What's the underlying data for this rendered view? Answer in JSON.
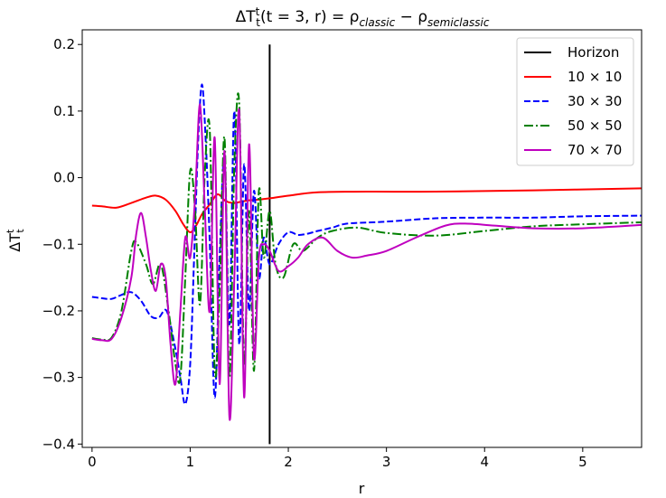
{
  "chart_data": {
    "type": "line",
    "title": "ΔT_t^t(t=3,r) = ρ_classic − ρ_semiclassic",
    "xlabel": "r",
    "ylabel": "ΔT_t^t",
    "xlim": [
      -0.1,
      5.6
    ],
    "ylim": [
      -0.405,
      0.222
    ],
    "xticks": [
      0,
      1,
      2,
      3,
      4,
      5
    ],
    "yticks": [
      -0.4,
      -0.3,
      -0.2,
      -0.1,
      0.0,
      0.1,
      0.2
    ],
    "xtick_labels": [
      "0",
      "1",
      "2",
      "3",
      "4",
      "5"
    ],
    "ytick_labels": [
      "−0.4",
      "−0.3",
      "−0.2",
      "−0.1",
      "0.0",
      "0.1",
      "0.2"
    ],
    "grid": false,
    "legend_position": "top-right",
    "horizon": {
      "name": "Horizon",
      "x": 1.81,
      "y_range": [
        -0.4,
        0.2
      ],
      "color": "#000000"
    },
    "series": [
      {
        "name": "10 × 10",
        "color": "#ff0000",
        "style": "solid",
        "points": [
          [
            0,
            -0.042
          ],
          [
            0.1,
            -0.043
          ],
          [
            0.25,
            -0.045
          ],
          [
            0.4,
            -0.038
          ],
          [
            0.55,
            -0.03
          ],
          [
            0.65,
            -0.027
          ],
          [
            0.75,
            -0.033
          ],
          [
            0.85,
            -0.05
          ],
          [
            0.93,
            -0.07
          ],
          [
            1.0,
            -0.082
          ],
          [
            1.06,
            -0.072
          ],
          [
            1.12,
            -0.055
          ],
          [
            1.2,
            -0.04
          ],
          [
            1.28,
            -0.025
          ],
          [
            1.36,
            -0.035
          ],
          [
            1.44,
            -0.038
          ],
          [
            1.52,
            -0.036
          ],
          [
            1.6,
            -0.034
          ],
          [
            1.7,
            -0.033
          ],
          [
            1.81,
            -0.031
          ],
          [
            2.0,
            -0.027
          ],
          [
            2.3,
            -0.022
          ],
          [
            2.8,
            -0.021
          ],
          [
            3.5,
            -0.021
          ],
          [
            4.5,
            -0.019
          ],
          [
            5.6,
            -0.016
          ]
        ]
      },
      {
        "name": "30 × 30",
        "color": "#0000ff",
        "style": "dashed",
        "points": [
          [
            0,
            -0.179
          ],
          [
            0.1,
            -0.181
          ],
          [
            0.2,
            -0.182
          ],
          [
            0.3,
            -0.176
          ],
          [
            0.4,
            -0.172
          ],
          [
            0.5,
            -0.185
          ],
          [
            0.6,
            -0.208
          ],
          [
            0.68,
            -0.21
          ],
          [
            0.76,
            -0.2
          ],
          [
            0.84,
            -0.25
          ],
          [
            0.9,
            -0.3
          ],
          [
            0.95,
            -0.34
          ],
          [
            1.0,
            -0.28
          ],
          [
            1.04,
            -0.12
          ],
          [
            1.08,
            0.05
          ],
          [
            1.12,
            0.14
          ],
          [
            1.16,
            0.05
          ],
          [
            1.2,
            -0.1
          ],
          [
            1.25,
            -0.33
          ],
          [
            1.3,
            -0.12
          ],
          [
            1.35,
            0.03
          ],
          [
            1.4,
            -0.22
          ],
          [
            1.45,
            0.1
          ],
          [
            1.5,
            -0.25
          ],
          [
            1.55,
            0.02
          ],
          [
            1.6,
            -0.2
          ],
          [
            1.65,
            -0.02
          ],
          [
            1.7,
            -0.15
          ],
          [
            1.75,
            -0.09
          ],
          [
            1.81,
            -0.13
          ],
          [
            1.9,
            -0.1
          ],
          [
            2.0,
            -0.082
          ],
          [
            2.1,
            -0.086
          ],
          [
            2.2,
            -0.084
          ],
          [
            2.3,
            -0.08
          ],
          [
            2.45,
            -0.075
          ],
          [
            2.6,
            -0.069
          ],
          [
            3.0,
            -0.066
          ],
          [
            3.5,
            -0.061
          ],
          [
            4.0,
            -0.06
          ],
          [
            4.5,
            -0.06
          ],
          [
            5.0,
            -0.058
          ],
          [
            5.6,
            -0.057
          ]
        ]
      },
      {
        "name": "50 × 50",
        "color": "#008000",
        "style": "dashdot",
        "points": [
          [
            0,
            -0.241
          ],
          [
            0.1,
            -0.243
          ],
          [
            0.2,
            -0.24
          ],
          [
            0.3,
            -0.2
          ],
          [
            0.4,
            -0.11
          ],
          [
            0.45,
            -0.097
          ],
          [
            0.55,
            -0.13
          ],
          [
            0.62,
            -0.16
          ],
          [
            0.7,
            -0.13
          ],
          [
            0.78,
            -0.2
          ],
          [
            0.85,
            -0.28
          ],
          [
            0.9,
            -0.3
          ],
          [
            0.95,
            -0.15
          ],
          [
            1.0,
            0.01
          ],
          [
            1.05,
            -0.05
          ],
          [
            1.1,
            -0.19
          ],
          [
            1.15,
            0.01
          ],
          [
            1.2,
            0.07
          ],
          [
            1.25,
            -0.29
          ],
          [
            1.3,
            -0.17
          ],
          [
            1.35,
            0.06
          ],
          [
            1.4,
            -0.3
          ],
          [
            1.45,
            0.02
          ],
          [
            1.5,
            0.11
          ],
          [
            1.55,
            -0.28
          ],
          [
            1.6,
            -0.05
          ],
          [
            1.65,
            -0.29
          ],
          [
            1.7,
            -0.02
          ],
          [
            1.75,
            -0.12
          ],
          [
            1.81,
            -0.05
          ],
          [
            1.87,
            -0.13
          ],
          [
            1.95,
            -0.15
          ],
          [
            2.05,
            -0.1
          ],
          [
            2.15,
            -0.11
          ],
          [
            2.3,
            -0.09
          ],
          [
            2.45,
            -0.08
          ],
          [
            2.7,
            -0.075
          ],
          [
            3.0,
            -0.083
          ],
          [
            3.5,
            -0.087
          ],
          [
            4.0,
            -0.08
          ],
          [
            4.5,
            -0.073
          ],
          [
            5.0,
            -0.07
          ],
          [
            5.6,
            -0.067
          ]
        ]
      },
      {
        "name": "70 × 70",
        "color": "#bf00bf",
        "style": "solid",
        "points": [
          [
            0,
            -0.242
          ],
          [
            0.1,
            -0.244
          ],
          [
            0.2,
            -0.242
          ],
          [
            0.3,
            -0.21
          ],
          [
            0.4,
            -0.15
          ],
          [
            0.45,
            -0.085
          ],
          [
            0.5,
            -0.053
          ],
          [
            0.55,
            -0.09
          ],
          [
            0.6,
            -0.14
          ],
          [
            0.65,
            -0.17
          ],
          [
            0.7,
            -0.13
          ],
          [
            0.75,
            -0.15
          ],
          [
            0.8,
            -0.25
          ],
          [
            0.85,
            -0.31
          ],
          [
            0.9,
            -0.2
          ],
          [
            0.95,
            -0.09
          ],
          [
            1.0,
            -0.12
          ],
          [
            1.05,
            -0.03
          ],
          [
            1.1,
            0.11
          ],
          [
            1.15,
            -0.05
          ],
          [
            1.2,
            -0.2
          ],
          [
            1.25,
            0.06
          ],
          [
            1.3,
            -0.31
          ],
          [
            1.35,
            0.04
          ],
          [
            1.4,
            -0.36
          ],
          [
            1.45,
            -0.15
          ],
          [
            1.5,
            0.1
          ],
          [
            1.55,
            -0.33
          ],
          [
            1.6,
            0.05
          ],
          [
            1.65,
            -0.27
          ],
          [
            1.7,
            -0.12
          ],
          [
            1.75,
            -0.1
          ],
          [
            1.81,
            -0.11
          ],
          [
            1.9,
            -0.14
          ],
          [
            2.0,
            -0.133
          ],
          [
            2.1,
            -0.12
          ],
          [
            2.2,
            -0.1
          ],
          [
            2.35,
            -0.09
          ],
          [
            2.5,
            -0.11
          ],
          [
            2.65,
            -0.12
          ],
          [
            2.8,
            -0.117
          ],
          [
            3.0,
            -0.11
          ],
          [
            3.3,
            -0.09
          ],
          [
            3.6,
            -0.072
          ],
          [
            3.8,
            -0.069
          ],
          [
            4.1,
            -0.072
          ],
          [
            4.5,
            -0.076
          ],
          [
            5.0,
            -0.076
          ],
          [
            5.6,
            -0.071
          ]
        ]
      }
    ]
  }
}
